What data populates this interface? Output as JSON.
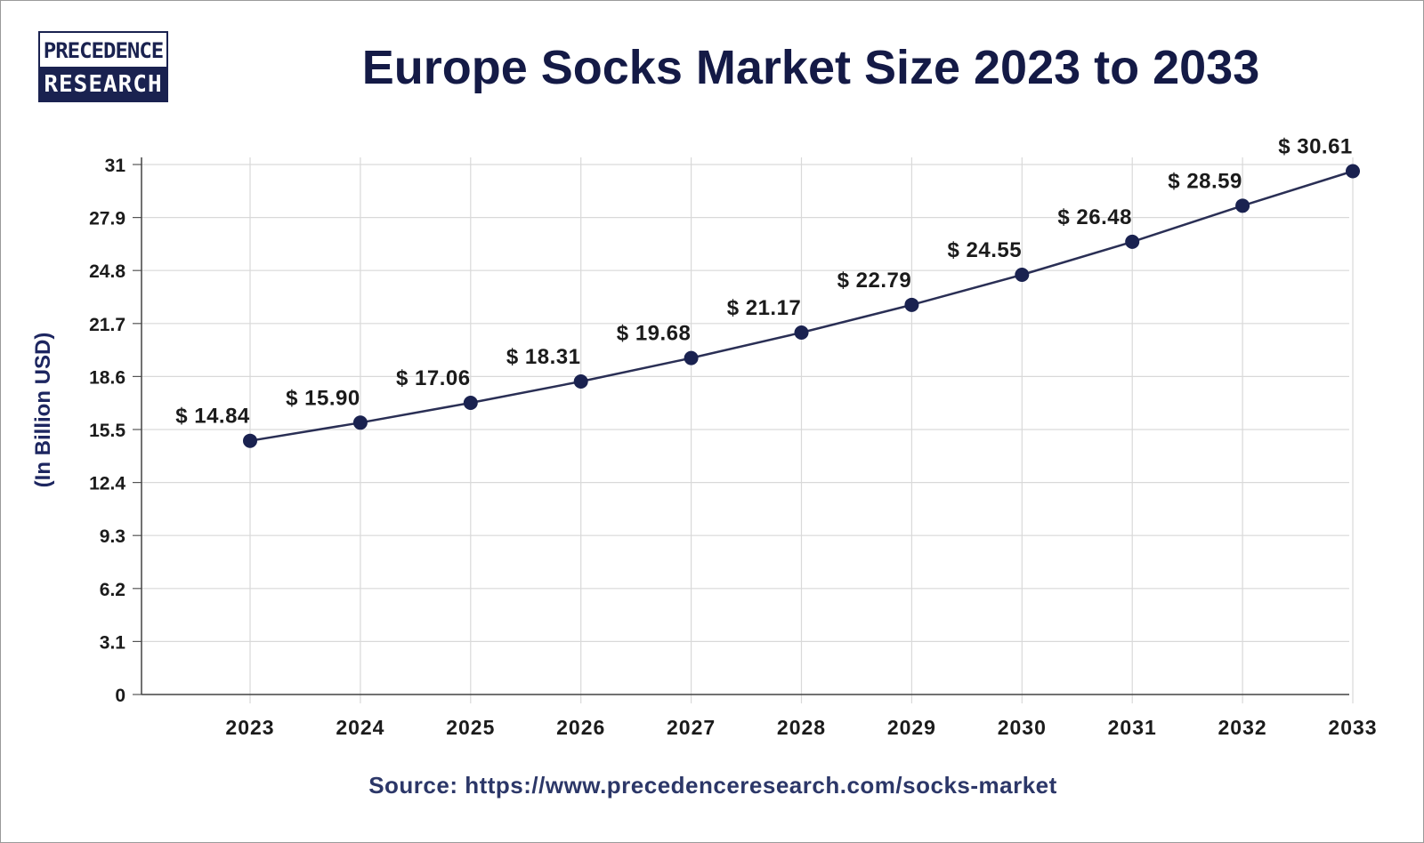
{
  "logo": {
    "line1": "PRECEDENCE",
    "line2": "RESEARCH"
  },
  "source": "Source: https://www.precedenceresearch.com/socks-market",
  "colors": {
    "line": "#2a2f55",
    "marker": "#1a2250",
    "grid": "#d9d9d9",
    "title": "#141a46"
  },
  "chart_data": {
    "type": "line",
    "title": "Europe Socks Market Size 2023 to 2033",
    "ylabel": "(In Billion USD)",
    "xlabel": "",
    "categories": [
      "2023",
      "2024",
      "2025",
      "2026",
      "2027",
      "2028",
      "2029",
      "2030",
      "2031",
      "2032",
      "2033"
    ],
    "series": [
      {
        "values": [
          14.84,
          15.9,
          17.06,
          18.31,
          19.68,
          21.17,
          22.79,
          24.55,
          26.48,
          28.59,
          30.61
        ]
      }
    ],
    "data_labels": [
      "$ 14.84",
      "$ 15.90",
      "$ 17.06",
      "$ 18.31",
      "$ 19.68",
      "$ 21.17",
      "$ 22.79",
      "$ 24.55",
      "$ 26.48",
      "$ 28.59",
      "$ 30.61"
    ],
    "yticks": [
      "0",
      "3.1",
      "6.2",
      "9.3",
      "12.4",
      "15.5",
      "18.6",
      "21.7",
      "24.8",
      "27.9",
      "31"
    ],
    "ylim": [
      0,
      31
    ],
    "grid": true,
    "legend": "none"
  }
}
